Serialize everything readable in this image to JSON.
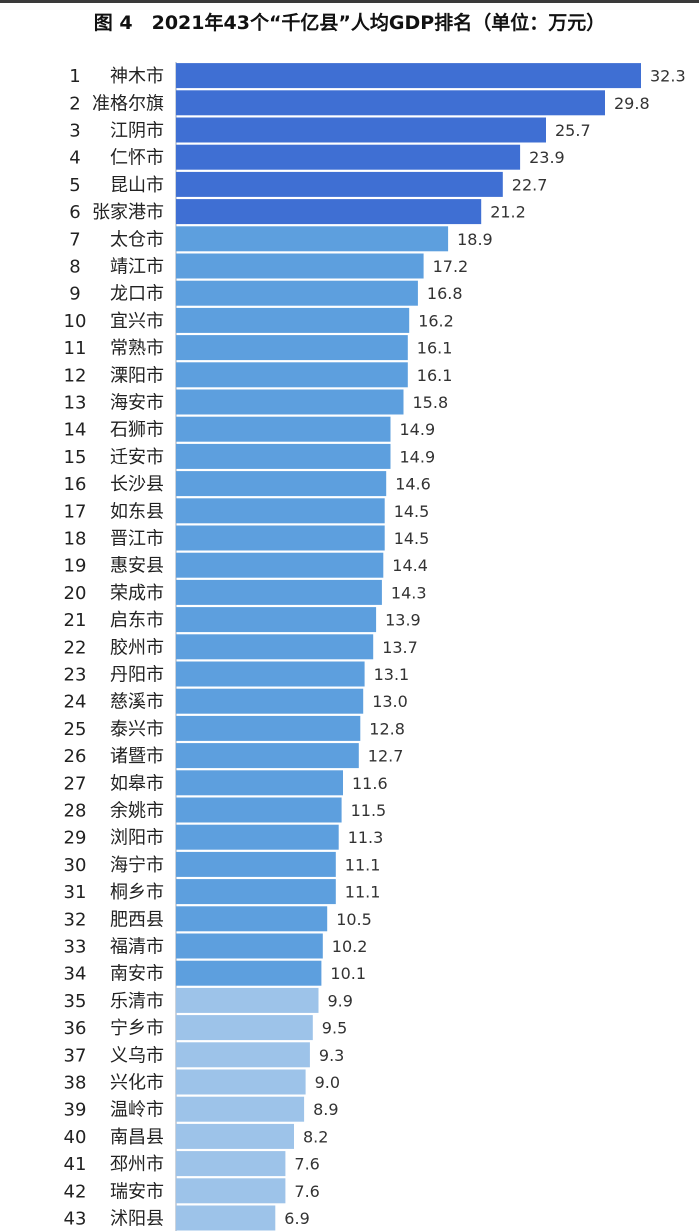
{
  "title": "图 4　2021年43个“千亿县”人均GDP排名（单位：万元）",
  "colors": {
    "dark": "#3F6FD3",
    "medium": "#5D9FDE",
    "light": "#9DC3E9"
  },
  "chart_data": {
    "type": "bar",
    "orientation": "horizontal",
    "title": "图 4　2021年43个“千亿县”人均GDP排名（单位：万元）",
    "ranks": [
      1,
      2,
      3,
      4,
      5,
      6,
      7,
      8,
      9,
      10,
      11,
      12,
      13,
      14,
      15,
      16,
      17,
      18,
      19,
      20,
      21,
      22,
      23,
      24,
      25,
      26,
      27,
      28,
      29,
      30,
      31,
      32,
      33,
      34,
      35,
      36,
      37,
      38,
      39,
      40,
      41,
      42,
      43
    ],
    "categories": [
      "神木市",
      "准格尔旗",
      "江阴市",
      "仁怀市",
      "昆山市",
      "张家港市",
      "太仓市",
      "靖江市",
      "龙口市",
      "宜兴市",
      "常熟市",
      "溧阳市",
      "海安市",
      "石狮市",
      "迁安市",
      "长沙县",
      "如东县",
      "晋江市",
      "惠安县",
      "荣成市",
      "启东市",
      "胶州市",
      "丹阳市",
      "慈溪市",
      "泰兴市",
      "诸暨市",
      "如皋市",
      "余姚市",
      "浏阳市",
      "海宁市",
      "桐乡市",
      "肥西县",
      "福清市",
      "南安市",
      "乐清市",
      "宁乡市",
      "义乌市",
      "兴化市",
      "温岭市",
      "南昌县",
      "邳州市",
      "瑞安市",
      "沭阳县"
    ],
    "values": [
      32.3,
      29.8,
      25.7,
      23.9,
      22.7,
      21.2,
      18.9,
      17.2,
      16.8,
      16.2,
      16.1,
      16.1,
      15.8,
      14.9,
      14.9,
      14.6,
      14.5,
      14.5,
      14.4,
      14.3,
      13.9,
      13.7,
      13.1,
      13.0,
      12.8,
      12.7,
      11.6,
      11.5,
      11.3,
      11.1,
      11.1,
      10.5,
      10.2,
      10.1,
      9.9,
      9.5,
      9.3,
      9.0,
      8.9,
      8.2,
      7.6,
      7.6,
      6.9
    ],
    "labels": [
      "32.3",
      "29.8",
      "25.7",
      "23.9",
      "22.7",
      "21.2",
      "18.9",
      "17.2",
      "16.8",
      "16.2",
      "16.1",
      "16.1",
      "15.8",
      "14.9",
      "14.9",
      "14.6",
      "14.5",
      "14.5",
      "14.4",
      "14.3",
      "13.9",
      "13.7",
      "13.1",
      "13.0",
      "12.8",
      "12.7",
      "11.6",
      "11.5",
      "11.3",
      "11.1",
      "11.1",
      "10.5",
      "10.2",
      "10.1",
      "9.9",
      "9.5",
      "9.3",
      "9.0",
      "8.9",
      "8.2",
      "7.6",
      "7.6",
      "6.9"
    ],
    "color_groups": {
      "dark": [
        1,
        6
      ],
      "medium": [
        7,
        34
      ],
      "light": [
        35,
        43
      ]
    },
    "grid": false,
    "legend": "none"
  }
}
